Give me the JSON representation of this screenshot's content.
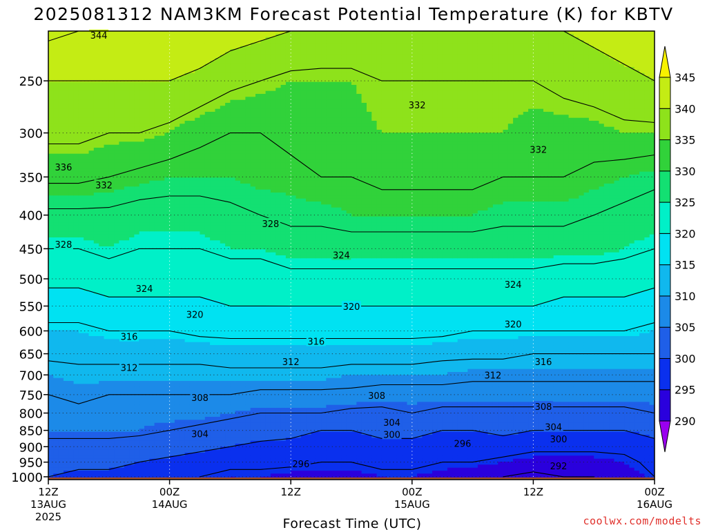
{
  "title": "2025081312 NAM3KM Forecast Potential Temperature (K) for KBTV",
  "xlabel": "Forecast Time (UTC)",
  "credit": "coolwx.com/modelts",
  "chart_data": {
    "type": "heatmap",
    "title": "2025081312 NAM3KM Forecast Potential Temperature (K) for KBTV",
    "xlabel": "Forecast Time (UTC)",
    "ylabel": "",
    "x_ticks": [
      {
        "hour": 0,
        "line1": "12Z",
        "line2": "13AUG",
        "line3": "2025"
      },
      {
        "hour": 12,
        "line1": "00Z",
        "line2": "14AUG",
        "line3": ""
      },
      {
        "hour": 24,
        "line1": "12Z",
        "line2": "",
        "line3": ""
      },
      {
        "hour": 36,
        "line1": "00Z",
        "line2": "15AUG",
        "line3": ""
      },
      {
        "hour": 48,
        "line1": "12Z",
        "line2": "",
        "line3": ""
      },
      {
        "hour": 60,
        "line1": "00Z",
        "line2": "16AUG",
        "line3": ""
      }
    ],
    "xlim": [
      0,
      60
    ],
    "y_scale": "log-pressure",
    "ylim": [
      1010,
      210
    ],
    "y_ticks": [
      250,
      300,
      350,
      400,
      450,
      500,
      550,
      600,
      650,
      700,
      750,
      800,
      850,
      900,
      950,
      1000
    ],
    "grid": true,
    "colorbar": {
      "levels": [
        290,
        295,
        300,
        305,
        310,
        315,
        320,
        325,
        330,
        335,
        340,
        345
      ],
      "colors": [
        "#9a00ef",
        "#2a00dd",
        "#0a30ee",
        "#1f5fe8",
        "#1c8ae8",
        "#10b8ee",
        "#00e2f2",
        "#00f0c8",
        "#13e072",
        "#31d23a",
        "#8ee21b",
        "#c4ec14",
        "#f8f200"
      ],
      "under_color": "#9a00ef",
      "over_color": "#f8f200"
    },
    "contour_interval": 4,
    "times": [
      0,
      3,
      6,
      9,
      12,
      15,
      18,
      21,
      24,
      27,
      30,
      33,
      36,
      39,
      42,
      45,
      48,
      51,
      54,
      57,
      60
    ],
    "pressures": [
      1000,
      950,
      900,
      850,
      800,
      750,
      700,
      650,
      600,
      550,
      500,
      450,
      400,
      350,
      300,
      250,
      210
    ],
    "theta": [
      [
        300,
        299,
        299,
        298,
        297,
        296,
        295,
        295,
        294,
        294,
        294,
        295,
        295,
        294,
        293,
        292,
        291,
        292,
        292,
        293,
        296
      ],
      [
        301,
        301,
        301,
        300,
        299,
        298,
        297,
        297,
        297,
        296,
        296,
        297,
        297,
        296,
        296,
        295,
        294,
        294,
        294,
        295,
        297
      ],
      [
        303,
        303,
        303,
        302,
        302,
        301,
        300,
        299,
        299,
        298,
        298,
        299,
        299,
        298,
        298,
        298,
        297,
        297,
        297,
        297,
        299
      ],
      [
        305,
        305,
        305,
        305,
        304,
        303,
        302,
        302,
        301,
        300,
        300,
        301,
        301,
        300,
        300,
        301,
        300,
        300,
        300,
        300,
        301
      ],
      [
        306,
        307,
        306,
        306,
        306,
        306,
        305,
        304,
        304,
        304,
        303,
        303,
        304,
        303,
        303,
        303,
        303,
        303,
        303,
        303,
        304
      ],
      [
        308,
        309,
        308,
        308,
        308,
        308,
        308,
        307,
        307,
        307,
        307,
        306,
        306,
        306,
        306,
        306,
        306,
        306,
        306,
        306,
        306
      ],
      [
        310,
        311,
        311,
        311,
        311,
        311,
        311,
        311,
        311,
        311,
        310,
        310,
        310,
        310,
        309,
        309,
        309,
        309,
        309,
        309,
        309
      ],
      [
        313,
        313,
        313,
        313,
        313,
        313,
        314,
        314,
        314,
        314,
        314,
        314,
        314,
        313,
        313,
        313,
        312,
        312,
        312,
        312,
        312
      ],
      [
        315,
        315,
        316,
        316,
        316,
        317,
        317,
        317,
        317,
        317,
        317,
        317,
        317,
        317,
        316,
        316,
        316,
        316,
        316,
        316,
        315
      ],
      [
        318,
        318,
        319,
        319,
        319,
        319,
        320,
        320,
        320,
        320,
        320,
        320,
        320,
        320,
        320,
        320,
        320,
        319,
        319,
        319,
        318
      ],
      [
        321,
        321,
        322,
        322,
        322,
        322,
        322,
        322,
        323,
        323,
        323,
        323,
        323,
        323,
        323,
        323,
        323,
        322,
        322,
        322,
        321
      ],
      [
        324,
        324,
        325,
        324,
        324,
        324,
        325,
        325,
        326,
        326,
        326,
        326,
        326,
        326,
        326,
        326,
        326,
        326,
        326,
        325,
        324
      ],
      [
        327,
        327,
        327,
        326,
        326,
        326,
        327,
        328,
        329,
        329,
        330,
        330,
        330,
        330,
        330,
        329,
        329,
        329,
        328,
        327,
        326
      ],
      [
        333,
        333,
        332,
        331,
        330,
        330,
        330,
        331,
        331,
        332,
        332,
        333,
        333,
        333,
        333,
        332,
        332,
        332,
        331,
        330,
        329
      ],
      [
        337,
        337,
        336,
        336,
        335,
        333,
        332,
        332,
        333,
        334,
        334,
        335,
        335,
        335,
        335,
        335,
        334,
        334,
        334,
        335,
        335
      ],
      [
        340,
        340,
        340,
        340,
        340,
        339,
        337,
        336,
        335,
        335,
        335,
        336,
        336,
        336,
        336,
        336,
        336,
        337,
        338,
        339,
        340
      ],
      [
        345,
        344,
        344,
        344,
        344,
        343,
        342,
        341,
        340,
        339,
        339,
        338,
        338,
        338,
        338,
        338,
        339,
        340,
        341,
        342,
        343
      ]
    ],
    "contour_labels": [
      {
        "text": "344",
        "hour": 5,
        "p": 213
      },
      {
        "text": "336",
        "hour": 1.5,
        "p": 338
      },
      {
        "text": "332",
        "hour": 5.5,
        "p": 360
      },
      {
        "text": "332",
        "hour": 36.5,
        "p": 272
      },
      {
        "text": "332",
        "hour": 48.5,
        "p": 318
      },
      {
        "text": "328",
        "hour": 1.5,
        "p": 443
      },
      {
        "text": "328",
        "hour": 22,
        "p": 412
      },
      {
        "text": "324",
        "hour": 9.5,
        "p": 517
      },
      {
        "text": "324",
        "hour": 29,
        "p": 460
      },
      {
        "text": "324",
        "hour": 46,
        "p": 510
      },
      {
        "text": "320",
        "hour": 14.5,
        "p": 566
      },
      {
        "text": "320",
        "hour": 30,
        "p": 551
      },
      {
        "text": "320",
        "hour": 46,
        "p": 586
      },
      {
        "text": "316",
        "hour": 8,
        "p": 612
      },
      {
        "text": "316",
        "hour": 26.5,
        "p": 622
      },
      {
        "text": "316",
        "hour": 49,
        "p": 668
      },
      {
        "text": "312",
        "hour": 8,
        "p": 682
      },
      {
        "text": "312",
        "hour": 24,
        "p": 668
      },
      {
        "text": "312",
        "hour": 44,
        "p": 700
      },
      {
        "text": "308",
        "hour": 15,
        "p": 758
      },
      {
        "text": "308",
        "hour": 32.5,
        "p": 752
      },
      {
        "text": "308",
        "hour": 49,
        "p": 782
      },
      {
        "text": "304",
        "hour": 15,
        "p": 860
      },
      {
        "text": "304",
        "hour": 34,
        "p": 826
      },
      {
        "text": "304",
        "hour": 50,
        "p": 840
      },
      {
        "text": "300",
        "hour": 34,
        "p": 862
      },
      {
        "text": "300",
        "hour": 50.5,
        "p": 876
      },
      {
        "text": "296",
        "hour": 25,
        "p": 955
      },
      {
        "text": "296",
        "hour": 41,
        "p": 890
      },
      {
        "text": "292",
        "hour": 50.5,
        "p": 962
      }
    ],
    "ground_color": "#a0502c",
    "ground_level": 1010
  }
}
